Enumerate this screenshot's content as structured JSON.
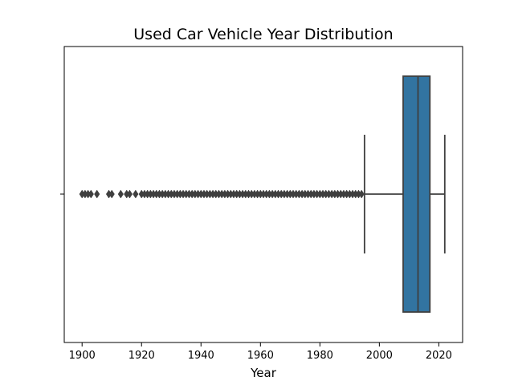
{
  "chart_data": {
    "type": "boxplot",
    "title": "Used Car Vehicle Year Distribution",
    "xlabel": "Year",
    "ylabel": "",
    "xlim": [
      1894,
      2028
    ],
    "x_ticks": [
      1900,
      1920,
      1940,
      1960,
      1980,
      2000,
      2020
    ],
    "orientation": "horizontal",
    "box": {
      "q1": 2008,
      "median": 2013,
      "q3": 2017,
      "whisker_low": 1995,
      "whisker_high": 2022
    },
    "outliers": [
      1900,
      1901,
      1902,
      1903,
      1905,
      1909,
      1910,
      1913,
      1915,
      1916,
      1918,
      1920,
      1921,
      1922,
      1923,
      1924,
      1925,
      1926,
      1927,
      1928,
      1929,
      1930,
      1931,
      1932,
      1933,
      1934,
      1935,
      1936,
      1937,
      1938,
      1939,
      1940,
      1941,
      1942,
      1943,
      1944,
      1945,
      1946,
      1947,
      1948,
      1949,
      1950,
      1951,
      1952,
      1953,
      1954,
      1955,
      1956,
      1957,
      1958,
      1959,
      1960,
      1961,
      1962,
      1963,
      1964,
      1965,
      1966,
      1967,
      1968,
      1969,
      1970,
      1971,
      1972,
      1973,
      1974,
      1975,
      1976,
      1977,
      1978,
      1979,
      1980,
      1981,
      1982,
      1983,
      1984,
      1985,
      1986,
      1987,
      1988,
      1989,
      1990,
      1991,
      1992,
      1993,
      1994
    ],
    "box_color": "#3274a1",
    "line_color": "#3f3f3f",
    "grid": false
  }
}
